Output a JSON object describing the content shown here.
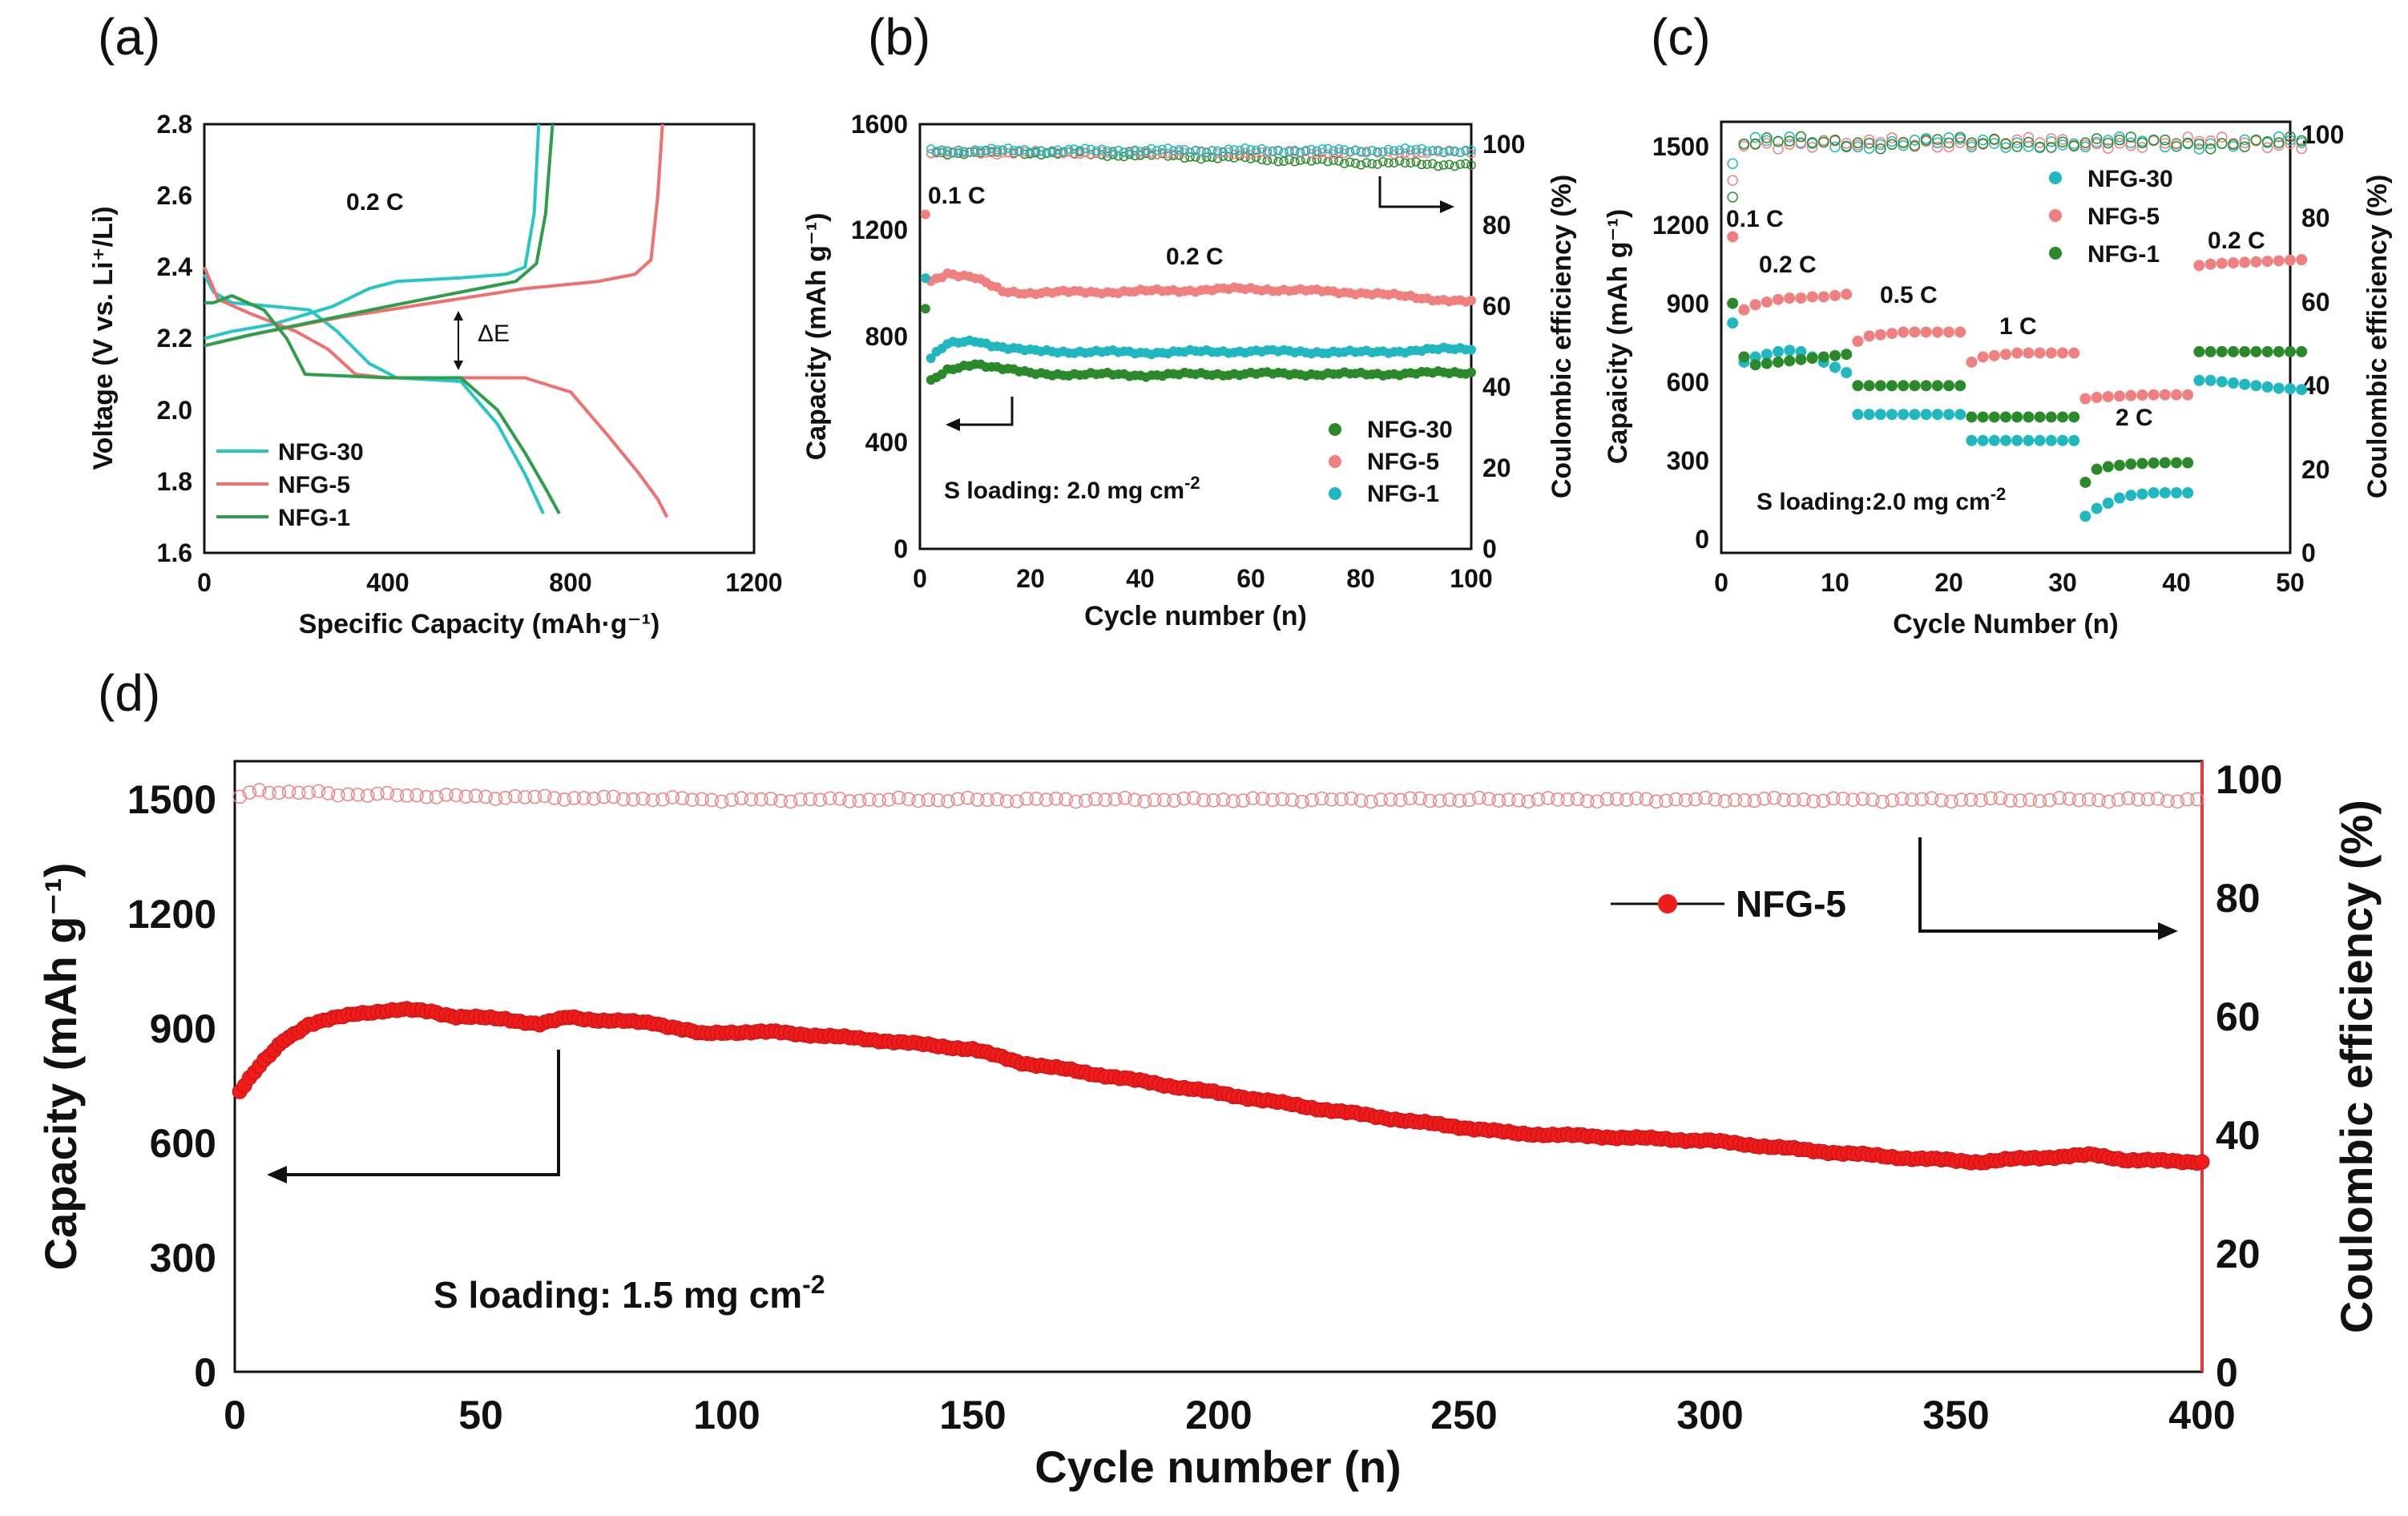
{
  "colors": {
    "nfg30": "#26c6c6",
    "nfg5": "#f07070",
    "nfg1": "#2e9e4a",
    "nfg30_dot": "#20b8c0",
    "nfg5_dot": "#f08080",
    "nfg1_dot": "#2a8a2a",
    "red": "#ef1c1c",
    "red_axis": "#e8343c",
    "axis": "#111111"
  },
  "chart_data": [
    {
      "id": "a",
      "panel_label": "(a)",
      "type": "line",
      "xlabel": "Specific Capacity (mAh·g⁻¹)",
      "ylabel": "Voltage (V vs. Li⁺/Li)",
      "xlim": [
        0,
        1200
      ],
      "ylim": [
        1.6,
        2.8
      ],
      "xticks": [
        "0",
        "400",
        "800",
        "1200"
      ],
      "yticks": [
        "1.6",
        "1.8",
        "2.0",
        "2.2",
        "2.4",
        "2.6",
        "2.8"
      ],
      "annotations": {
        "rate": "0.2 C",
        "delta_e": "ΔE"
      },
      "legend": [
        "NFG-30",
        "NFG-5",
        "NFG-1"
      ],
      "series": [
        {
          "name": "NFG-30",
          "color_key": "nfg30",
          "discharge": [
            [
              0,
              2.38
            ],
            [
              20,
              2.33
            ],
            [
              60,
              2.3
            ],
            [
              150,
              2.29
            ],
            [
              230,
              2.28
            ],
            [
              290,
              2.22
            ],
            [
              360,
              2.13
            ],
            [
              420,
              2.09
            ],
            [
              560,
              2.08
            ],
            [
              640,
              1.96
            ],
            [
              700,
              1.82
            ],
            [
              740,
              1.71
            ]
          ],
          "charge": [
            [
              0,
              2.2
            ],
            [
              60,
              2.22
            ],
            [
              150,
              2.24
            ],
            [
              280,
              2.29
            ],
            [
              360,
              2.34
            ],
            [
              420,
              2.36
            ],
            [
              560,
              2.37
            ],
            [
              660,
              2.38
            ],
            [
              700,
              2.4
            ],
            [
              720,
              2.55
            ],
            [
              730,
              2.8
            ]
          ]
        },
        {
          "name": "NFG-5",
          "color_key": "nfg5",
          "discharge": [
            [
              0,
              2.4
            ],
            [
              30,
              2.31
            ],
            [
              100,
              2.27
            ],
            [
              200,
              2.22
            ],
            [
              270,
              2.17
            ],
            [
              330,
              2.1
            ],
            [
              400,
              2.09
            ],
            [
              700,
              2.09
            ],
            [
              800,
              2.05
            ],
            [
              880,
              1.93
            ],
            [
              950,
              1.82
            ],
            [
              990,
              1.75
            ],
            [
              1010,
              1.7
            ]
          ],
          "charge": [
            [
              0,
              2.18
            ],
            [
              100,
              2.21
            ],
            [
              300,
              2.26
            ],
            [
              500,
              2.3
            ],
            [
              700,
              2.34
            ],
            [
              860,
              2.36
            ],
            [
              940,
              2.38
            ],
            [
              975,
              2.42
            ],
            [
              990,
              2.6
            ],
            [
              1000,
              2.8
            ]
          ]
        },
        {
          "name": "NFG-1",
          "color_key": "nfg1",
          "discharge": [
            [
              0,
              2.3
            ],
            [
              20,
              2.3
            ],
            [
              60,
              2.32
            ],
            [
              130,
              2.28
            ],
            [
              180,
              2.2
            ],
            [
              220,
              2.1
            ],
            [
              400,
              2.09
            ],
            [
              560,
              2.09
            ],
            [
              640,
              2.0
            ],
            [
              700,
              1.88
            ],
            [
              745,
              1.78
            ],
            [
              775,
              1.71
            ]
          ],
          "charge": [
            [
              0,
              2.18
            ],
            [
              100,
              2.21
            ],
            [
              250,
              2.25
            ],
            [
              400,
              2.29
            ],
            [
              560,
              2.33
            ],
            [
              680,
              2.36
            ],
            [
              725,
              2.41
            ],
            [
              745,
              2.55
            ],
            [
              760,
              2.8
            ]
          ]
        }
      ]
    },
    {
      "id": "b",
      "panel_label": "(b)",
      "type": "scatter",
      "xlabel": "Cycle number  (n)",
      "ylabel": "Capacity  (mAh g⁻¹)",
      "y2label": "Coulombic efficiency (%)",
      "xlim": [
        0,
        100
      ],
      "ylim": [
        0,
        1600
      ],
      "y2lim": [
        0,
        105
      ],
      "xticks": [
        "0",
        "20",
        "40",
        "60",
        "80",
        "100"
      ],
      "yticks": [
        "0",
        "400",
        "800",
        "1200",
        "1600"
      ],
      "y2ticks": [
        "0",
        "20",
        "40",
        "60",
        "80",
        "100"
      ],
      "annotations": {
        "rate_initial": "0.1 C",
        "rate_main": "0.2 C",
        "loading": "S loading: 2.0 mg cm",
        "loading_sup": "-2"
      },
      "legend": [
        "NFG-30",
        "NFG-5",
        "NFG-1"
      ],
      "series": [
        {
          "name": "NFG-30",
          "color_key": "nfg1_dot",
          "capacity_first": 905,
          "capacity_profile": [
            [
              2,
              630
            ],
            [
              5,
              670
            ],
            [
              10,
              700
            ],
            [
              15,
              680
            ],
            [
              20,
              660
            ],
            [
              40,
              655
            ],
            [
              60,
              660
            ],
            [
              80,
              658
            ],
            [
              100,
              665
            ]
          ],
          "ce_profile": [
            [
              2,
              98
            ],
            [
              20,
              98
            ],
            [
              50,
              97
            ],
            [
              80,
              95.5
            ],
            [
              100,
              95
            ]
          ]
        },
        {
          "name": "NFG-5",
          "color_key": "nfg5_dot",
          "capacity_first": 1260,
          "capacity_profile": [
            [
              2,
              1010
            ],
            [
              5,
              1040
            ],
            [
              10,
              1020
            ],
            [
              15,
              970
            ],
            [
              20,
              965
            ],
            [
              40,
              970
            ],
            [
              60,
              980
            ],
            [
              80,
              965
            ],
            [
              100,
              930
            ]
          ],
          "ce_profile": [
            [
              2,
              98
            ],
            [
              20,
              98
            ],
            [
              50,
              98
            ],
            [
              100,
              98
            ]
          ]
        },
        {
          "name": "NFG-1",
          "color_key": "nfg30_dot",
          "capacity_first": 1020,
          "capacity_profile": [
            [
              2,
              720
            ],
            [
              5,
              770
            ],
            [
              10,
              785
            ],
            [
              15,
              760
            ],
            [
              20,
              745
            ],
            [
              40,
              740
            ],
            [
              60,
              745
            ],
            [
              80,
              740
            ],
            [
              100,
              755
            ]
          ],
          "ce_profile": [
            [
              2,
              98.5
            ],
            [
              20,
              98.5
            ],
            [
              50,
              98.5
            ],
            [
              100,
              98.5
            ]
          ]
        }
      ]
    },
    {
      "id": "c",
      "panel_label": "(c)",
      "type": "scatter",
      "xlabel": "Cycle Number (n)",
      "ylabel": "Capaicity (mAh g⁻¹)",
      "y2label": "Coulombic efficiency (%)",
      "xlim": [
        0,
        50
      ],
      "ylim": [
        -50,
        1600
      ],
      "y2lim": [
        0,
        103
      ],
      "xticks": [
        "0",
        "10",
        "20",
        "30",
        "40",
        "50"
      ],
      "yticks": [
        "0",
        "300",
        "600",
        "900",
        "1200",
        "1500"
      ],
      "y2ticks": [
        "0",
        "20",
        "40",
        "60",
        "80",
        "100"
      ],
      "rate_labels": [
        "0.1 C",
        "0.2 C",
        "0.5 C",
        "1 C",
        "2 C",
        "0.2 C"
      ],
      "loading": "S loading:2.0 mg cm",
      "loading_sup": "-2",
      "legend": [
        "NFG-30",
        "NFG-5",
        "NFG-1"
      ],
      "series": [
        {
          "name": "NFG-30",
          "color_key": "nfg30_dot",
          "capacity": [
            830,
            680,
            700,
            710,
            720,
            725,
            720,
            700,
            680,
            660,
            640,
            480,
            480,
            480,
            480,
            480,
            480,
            480,
            480,
            480,
            480,
            380,
            380,
            380,
            380,
            380,
            380,
            380,
            380,
            380,
            380,
            90,
            120,
            140,
            160,
            170,
            175,
            180,
            180,
            180,
            180,
            610,
            610,
            605,
            600,
            595,
            590,
            585,
            580,
            578,
            575
          ]
        },
        {
          "name": "NFG-5",
          "color_key": "nfg5_dot",
          "capacity": [
            1160,
            880,
            900,
            910,
            920,
            925,
            925,
            930,
            930,
            935,
            940,
            760,
            780,
            785,
            790,
            795,
            795,
            795,
            795,
            795,
            795,
            680,
            700,
            705,
            710,
            715,
            715,
            715,
            715,
            715,
            715,
            540,
            545,
            548,
            550,
            552,
            554,
            555,
            555,
            555,
            555,
            1050,
            1055,
            1058,
            1060,
            1062,
            1064,
            1066,
            1068,
            1070,
            1072
          ]
        },
        {
          "name": "NFG-1",
          "color_key": "nfg1_dot",
          "capacity": [
            905,
            700,
            670,
            675,
            680,
            685,
            690,
            695,
            700,
            705,
            710,
            590,
            590,
            590,
            590,
            590,
            590,
            590,
            590,
            590,
            590,
            470,
            470,
            470,
            470,
            470,
            470,
            470,
            470,
            470,
            470,
            220,
            270,
            280,
            285,
            290,
            292,
            294,
            295,
            295,
            295,
            720,
            720,
            720,
            720,
            720,
            720,
            720,
            720,
            720,
            720
          ]
        }
      ]
    },
    {
      "id": "d",
      "panel_label": "(d)",
      "type": "scatter",
      "xlabel": "Cycle  number (n)",
      "ylabel": "Capacity (mAh g⁻¹)",
      "y2label": "Coulombic efficiency (%)",
      "xlim": [
        0,
        400
      ],
      "ylim": [
        0,
        1600
      ],
      "y2lim": [
        0,
        103
      ],
      "xticks": [
        "0",
        "50",
        "100",
        "150",
        "200",
        "250",
        "300",
        "350",
        "400"
      ],
      "yticks": [
        "0",
        "300",
        "600",
        "900",
        "1200",
        "1500"
      ],
      "y2ticks": [
        "0",
        "20",
        "40",
        "60",
        "80",
        "100"
      ],
      "legend": [
        "NFG-5"
      ],
      "loading": "S loading: 1.5 mg cm",
      "loading_sup": "-2",
      "series": [
        {
          "name": "NFG-5",
          "color_key": "red",
          "capacity_profile": [
            [
              1,
              735
            ],
            [
              5,
              800
            ],
            [
              10,
              870
            ],
            [
              15,
              910
            ],
            [
              20,
              925
            ],
            [
              25,
              940
            ],
            [
              30,
              945
            ],
            [
              35,
              948
            ],
            [
              40,
              945
            ],
            [
              45,
              930
            ],
            [
              55,
              925
            ],
            [
              62,
              910
            ],
            [
              68,
              930
            ],
            [
              75,
              920
            ],
            [
              85,
              915
            ],
            [
              95,
              885
            ],
            [
              100,
              890
            ],
            [
              110,
              890
            ],
            [
              130,
              870
            ],
            [
              150,
              845
            ],
            [
              160,
              810
            ],
            [
              180,
              770
            ],
            [
              200,
              730
            ],
            [
              220,
              690
            ],
            [
              240,
              655
            ],
            [
              250,
              640
            ],
            [
              260,
              625
            ],
            [
              280,
              615
            ],
            [
              300,
              605
            ],
            [
              320,
              580
            ],
            [
              340,
              560
            ],
            [
              355,
              550
            ],
            [
              365,
              560
            ],
            [
              378,
              568
            ],
            [
              385,
              555
            ],
            [
              400,
              550
            ]
          ],
          "ce_profile": [
            [
              1,
              97
            ],
            [
              5,
              98
            ],
            [
              20,
              97.5
            ],
            [
              50,
              97
            ],
            [
              100,
              96.5
            ],
            [
              200,
              96.5
            ],
            [
              300,
              96.5
            ],
            [
              400,
              96.5
            ]
          ]
        }
      ]
    }
  ]
}
